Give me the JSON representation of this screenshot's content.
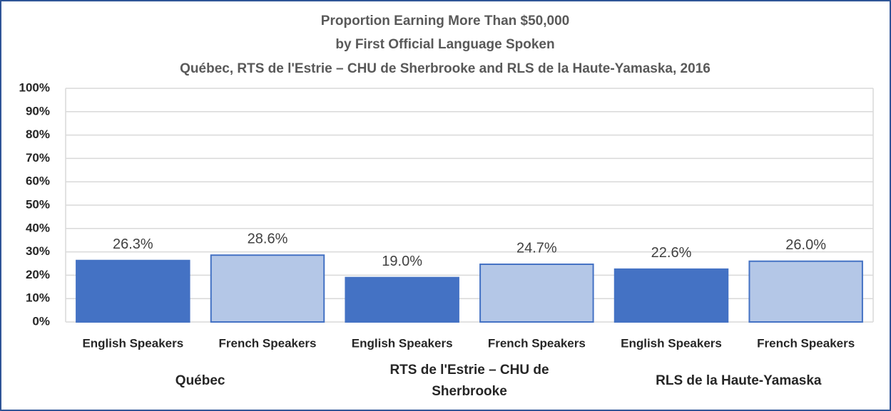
{
  "chart_data": {
    "type": "bar",
    "title": [
      "Proportion Earning More Than $50,000",
      "by First Official Language Spoken",
      "Québec, RTS de l'Estrie – CHU de Sherbrooke and RLS de la Haute-Yamaska, 2016"
    ],
    "categories": [
      "English Speakers",
      "French Speakers",
      "English Speakers",
      "French Speakers",
      "English Speakers",
      "French Speakers"
    ],
    "groups": [
      "Québec",
      "RTS de l'Estrie – CHU de Sherbrooke",
      "RLS de la Haute-Yamaska"
    ],
    "values": [
      26.3,
      28.6,
      19.0,
      24.7,
      22.6,
      26.0
    ],
    "value_labels": [
      "26.3%",
      "28.6%",
      "19.0%",
      "24.7%",
      "22.6%",
      "26.0%"
    ],
    "colors": [
      "#4472c4",
      "#b4c7e7",
      "#4472c4",
      "#b4c7e7",
      "#4472c4",
      "#b4c7e7"
    ],
    "ylim": [
      0,
      100
    ],
    "yticks": [
      {
        "value": 0,
        "label": "0%"
      },
      {
        "value": 10,
        "label": "10%"
      },
      {
        "value": 20,
        "label": "20%"
      },
      {
        "value": 30,
        "label": "30%"
      },
      {
        "value": 40,
        "label": "40%"
      },
      {
        "value": 50,
        "label": "50%"
      },
      {
        "value": 60,
        "label": "60%"
      },
      {
        "value": 70,
        "label": "70%"
      },
      {
        "value": 80,
        "label": "80%"
      },
      {
        "value": 90,
        "label": "90%"
      },
      {
        "value": 100,
        "label": "100%"
      }
    ],
    "grid": true
  }
}
